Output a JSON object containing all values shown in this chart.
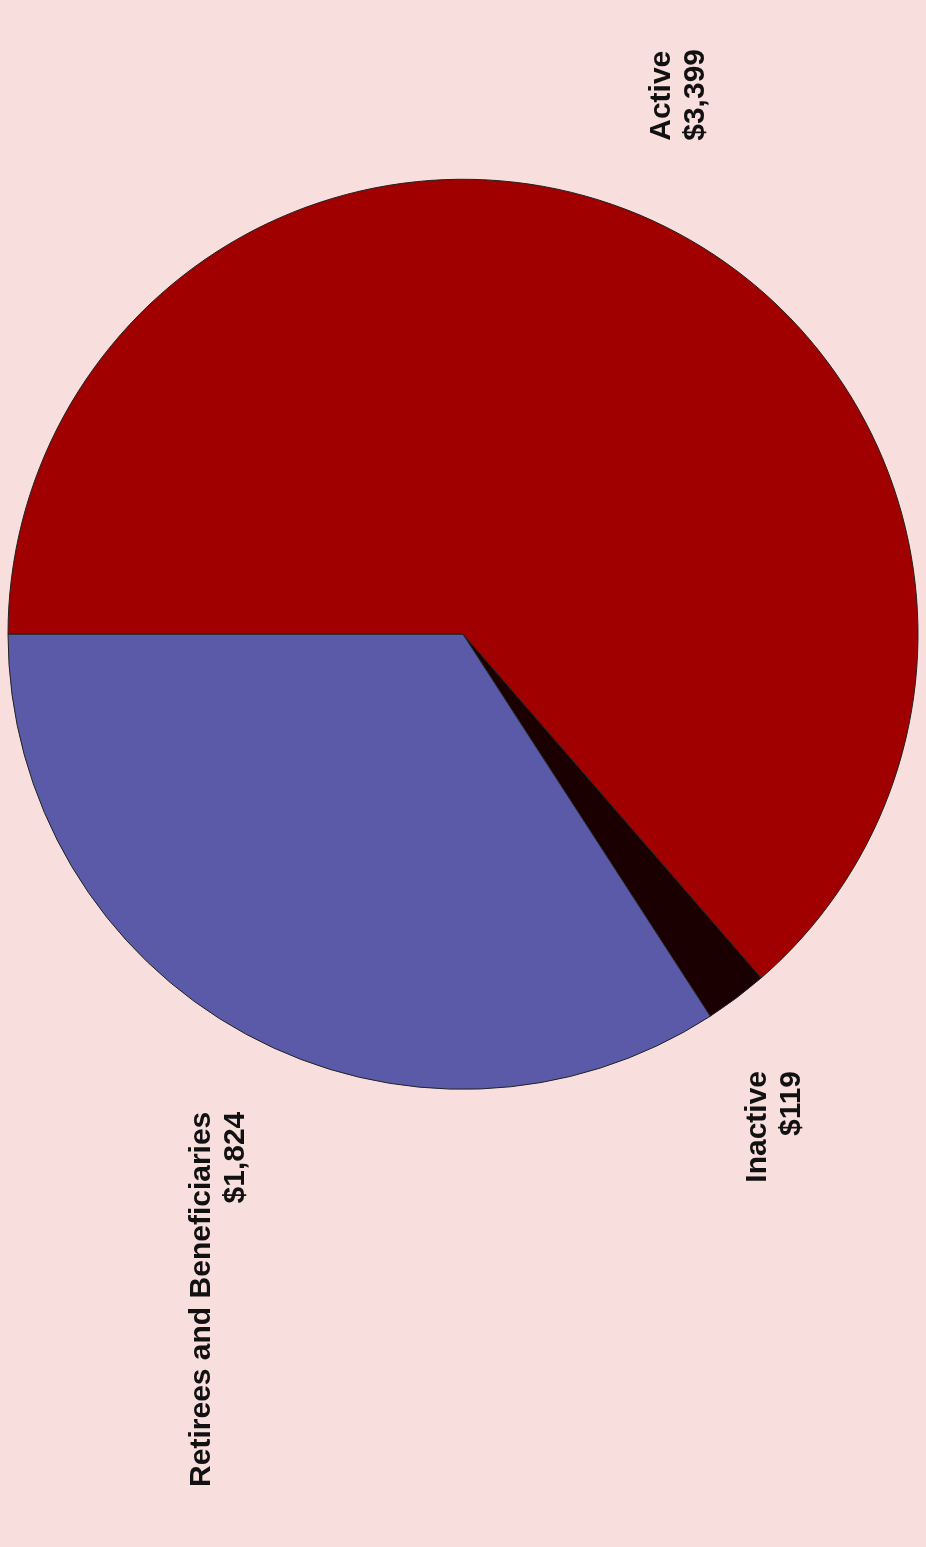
{
  "chart_data": {
    "type": "pie",
    "categories": [
      "Active",
      "Inactive",
      "Retirees and Beneficiaries"
    ],
    "values": [
      3399,
      119,
      1824
    ],
    "value_labels": [
      "$3,399",
      "$119",
      "$1,824"
    ],
    "colors": [
      "#a00000",
      "#1a0000",
      "#5a5aa8"
    ]
  }
}
